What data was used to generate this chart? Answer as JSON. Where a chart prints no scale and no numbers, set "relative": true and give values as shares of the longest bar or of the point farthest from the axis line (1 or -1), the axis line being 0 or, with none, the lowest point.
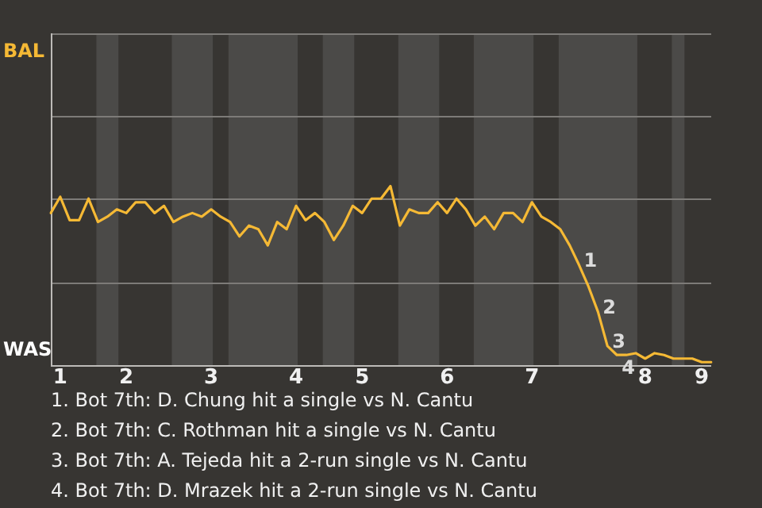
{
  "chart_data": {
    "type": "line",
    "categories": [
      null,
      "1",
      null,
      null,
      null,
      null,
      null,
      null,
      "2",
      null,
      null,
      null,
      null,
      null,
      null,
      null,
      null,
      "3",
      null,
      null,
      null,
      null,
      null,
      null,
      null,
      null,
      "4",
      null,
      null,
      null,
      null,
      null,
      null,
      "5",
      null,
      null,
      null,
      null,
      null,
      null,
      null,
      null,
      "6",
      null,
      null,
      null,
      null,
      null,
      null,
      null,
      null,
      "7",
      null,
      null,
      null,
      null,
      null,
      null,
      null,
      null,
      null,
      null,
      null,
      "8",
      null,
      null,
      null,
      null,
      null,
      "9",
      null
    ],
    "relative": true,
    "series": [
      {
        "color": "#f5b935",
        "values": [
          0.85,
          0.94,
          0.81,
          0.81,
          0.93,
          0.8,
          0.83,
          0.87,
          0.85,
          0.91,
          0.91,
          0.85,
          0.89,
          0.8,
          0.83,
          0.85,
          0.83,
          0.87,
          0.83,
          0.8,
          0.72,
          0.78,
          0.76,
          0.67,
          0.8,
          0.76,
          0.89,
          0.81,
          0.85,
          0.8,
          0.7,
          0.78,
          0.89,
          0.85,
          0.93,
          0.93,
          1,
          0.78,
          0.87,
          0.85,
          0.85,
          0.91,
          0.85,
          0.93,
          0.87,
          0.78,
          0.83,
          0.76,
          0.85,
          0.85,
          0.8,
          0.91,
          0.83,
          0.8,
          0.76,
          0.67,
          0.56,
          0.44,
          0.3,
          0.11,
          0.06,
          0.06,
          0.07,
          0.04,
          0.07,
          0.06,
          0.04,
          0.04,
          0.04,
          0.02,
          0.02
        ]
      }
    ],
    "ref_lines": [
      {
        "axis": "y",
        "value": 0.46,
        "color": "#7d7b78"
      },
      {
        "axis": "y",
        "value": 0.93,
        "color": "#7d7b78"
      },
      {
        "axis": "y",
        "value": 1.39,
        "color": "#7d7b78"
      },
      {
        "axis": "y",
        "value": 1.85,
        "color": "#7d7b78"
      }
    ],
    "marker": "none",
    "annotations": [
      "BAL",
      "WAS",
      "1",
      "2",
      "3",
      "4",
      "1. Bot 7th: D. Chung hit a single vs N. Cantu",
      "2. Bot 7th: C. Rothman hit a single vs N. Cantu",
      "3. Bot 7th: A. Tejeda hit a 2-run single vs N. Cantu",
      "4. Bot 7th: D. Mrazek hit a 2-run single vs N. Cantu"
    ]
  }
}
